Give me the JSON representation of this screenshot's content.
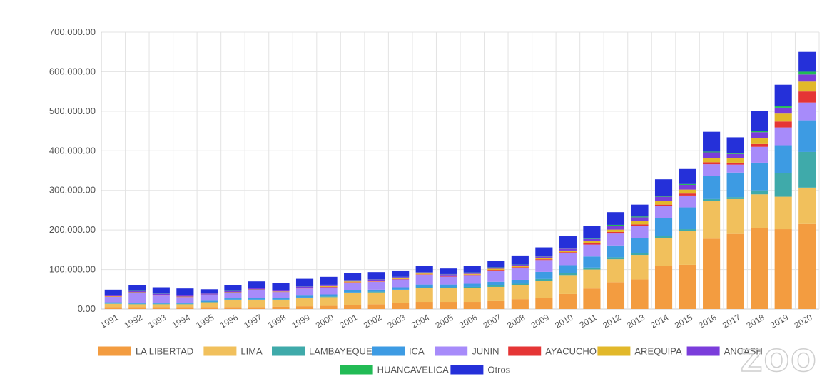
{
  "chart_data": {
    "type": "bar",
    "stacked": true,
    "categories": [
      "1991",
      "1992",
      "1993",
      "1994",
      "1995",
      "1996",
      "1997",
      "1998",
      "1999",
      "2000",
      "2001",
      "2002",
      "2003",
      "2004",
      "2005",
      "2006",
      "2007",
      "2008",
      "2009",
      "2010",
      "2011",
      "2012",
      "2013",
      "2014",
      "2015",
      "2016",
      "2017",
      "2018",
      "2019",
      "2020"
    ],
    "y_ticks": [
      "0.00",
      "100,000.00",
      "200,000.00",
      "300,000.00",
      "400,000.00",
      "500,000.00",
      "600,000.00",
      "700,000.00"
    ],
    "ylim": [
      0,
      700000
    ],
    "grid": true,
    "legend_position": "bottom",
    "series": [
      {
        "name": "LA LIBERTAD",
        "color": "#f39c40",
        "values": [
          5000,
          5000,
          5000,
          5000,
          5000,
          5000,
          5000,
          6000,
          7000,
          8000,
          10000,
          12000,
          15000,
          18000,
          18000,
          18000,
          20000,
          25000,
          28000,
          38000,
          52000,
          68000,
          75000,
          110000,
          112000,
          178000,
          190000,
          205000,
          202000,
          215000
        ]
      },
      {
        "name": "LIMA",
        "color": "#f1c05c",
        "values": [
          8000,
          7000,
          7000,
          7000,
          12000,
          18000,
          18000,
          17000,
          20000,
          22000,
          30000,
          30000,
          32000,
          35000,
          35000,
          35000,
          36000,
          35000,
          43000,
          48000,
          48000,
          58000,
          62000,
          70000,
          85000,
          95000,
          88000,
          85000,
          82000,
          92000
        ]
      },
      {
        "name": "LAMBAYEQUE",
        "color": "#3faaaa",
        "values": [
          1000,
          1000,
          1000,
          1000,
          1000,
          1000,
          1000,
          1000,
          2000,
          2000,
          2000,
          2000,
          2000,
          2000,
          2000,
          3000,
          4000,
          4000,
          5000,
          5000,
          5000,
          5000,
          5000,
          5000,
          5000,
          5000,
          5000,
          10000,
          60000,
          90000
        ]
      },
      {
        "name": "ICA",
        "color": "#3d9be3",
        "values": [
          3000,
          3000,
          3000,
          3000,
          3000,
          3000,
          4000,
          4000,
          5000,
          5000,
          5000,
          5000,
          6000,
          7000,
          7000,
          8000,
          9000,
          10000,
          18000,
          20000,
          28000,
          30000,
          38000,
          45000,
          55000,
          58000,
          62000,
          70000,
          70000,
          80000
        ]
      },
      {
        "name": "JUNIN",
        "color": "#a78bfa",
        "values": [
          14000,
          25000,
          18000,
          14000,
          14000,
          14000,
          20000,
          15000,
          18000,
          18000,
          20000,
          20000,
          20000,
          25000,
          20000,
          22000,
          28000,
          30000,
          30000,
          30000,
          30000,
          30000,
          30000,
          30000,
          30000,
          30000,
          20000,
          40000,
          45000,
          45000
        ]
      },
      {
        "name": "AYACUCHO",
        "color": "#e53535",
        "values": [
          500,
          500,
          500,
          500,
          500,
          500,
          500,
          500,
          1000,
          1000,
          1000,
          1000,
          1000,
          1000,
          1000,
          1000,
          2000,
          2000,
          2000,
          3000,
          3000,
          4000,
          4000,
          4000,
          5000,
          5000,
          5000,
          7000,
          15000,
          28000
        ]
      },
      {
        "name": "AREQUIPA",
        "color": "#e2b82a",
        "values": [
          1000,
          1000,
          1000,
          1000,
          1000,
          1000,
          1000,
          1000,
          1000,
          2000,
          2000,
          2000,
          2000,
          2000,
          2000,
          2000,
          3000,
          3000,
          3000,
          4000,
          6000,
          6000,
          8000,
          10000,
          10000,
          10000,
          12000,
          15000,
          20000,
          25000
        ]
      },
      {
        "name": "ANCASH",
        "color": "#7b3ddb",
        "values": [
          3000,
          3000,
          3000,
          3000,
          3000,
          3000,
          3000,
          3000,
          3000,
          3000,
          3000,
          3000,
          3000,
          3000,
          3000,
          3000,
          3000,
          3000,
          4000,
          5000,
          5000,
          10000,
          10000,
          10000,
          12000,
          15000,
          10000,
          15000,
          15000,
          18000
        ]
      },
      {
        "name": "HUANCAVELICA",
        "color": "#22bb55",
        "values": [
          500,
          500,
          500,
          500,
          500,
          500,
          500,
          500,
          500,
          500,
          500,
          500,
          500,
          500,
          500,
          500,
          500,
          500,
          1000,
          1000,
          1000,
          2000,
          2000,
          2000,
          2000,
          2000,
          2000,
          3000,
          4000,
          7000
        ]
      },
      {
        "name": "Otros",
        "color": "#2530d9",
        "values": [
          13000,
          14000,
          16000,
          17000,
          10000,
          15000,
          17000,
          17000,
          19000,
          20000,
          18000,
          18000,
          16000,
          15000,
          14000,
          16000,
          17000,
          23000,
          22000,
          30000,
          32000,
          32000,
          30000,
          42000,
          38000,
          50000,
          40000,
          50000,
          54000,
          50000
        ]
      }
    ]
  }
}
